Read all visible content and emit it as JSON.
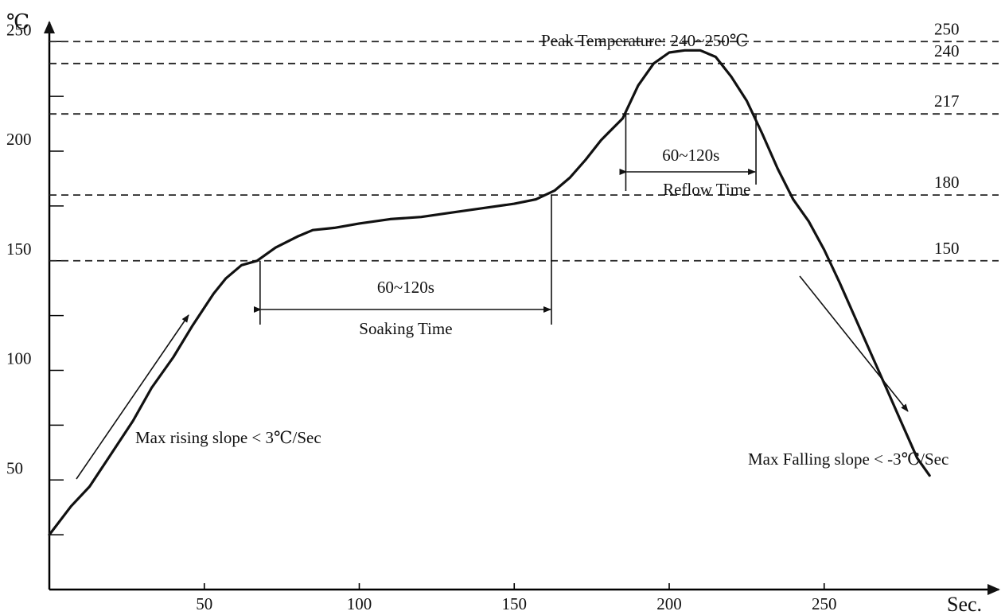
{
  "chart_data": {
    "type": "line",
    "title": "",
    "xlabel": "Sec.",
    "ylabel": "℃",
    "xlim": [
      0,
      290
    ],
    "ylim": [
      0,
      260
    ],
    "x_ticks": [
      50,
      100,
      150,
      200,
      250
    ],
    "y_tick_values": [
      25,
      50,
      75,
      100,
      125,
      150,
      175,
      200,
      225,
      250
    ],
    "y_tick_labels": [
      {
        "value": 50,
        "label": "50"
      },
      {
        "value": 100,
        "label": "100"
      },
      {
        "value": 150,
        "label": "150"
      },
      {
        "value": 200,
        "label": "200"
      },
      {
        "value": 250,
        "label": "250"
      }
    ],
    "grid": false,
    "reference_lines": [
      {
        "value": 250,
        "label": "250"
      },
      {
        "value": 240,
        "label": "240"
      },
      {
        "value": 217,
        "label": "217"
      },
      {
        "value": 180,
        "label": "180"
      },
      {
        "value": 150,
        "label": "150"
      }
    ],
    "series": [
      {
        "name": "",
        "x": [
          0,
          7,
          13,
          20,
          27,
          33,
          40,
          46,
          53,
          57,
          62,
          67,
          73,
          80,
          85,
          92,
          100,
          110,
          120,
          130,
          140,
          150,
          157,
          163,
          168,
          173,
          178,
          185,
          190,
          195,
          200,
          205,
          210,
          215,
          220,
          225,
          230,
          235,
          240,
          245,
          250,
          255,
          260,
          265,
          270,
          275,
          280,
          284
        ],
        "y": [
          25,
          38,
          47,
          62,
          77,
          92,
          106,
          120,
          135,
          142,
          148,
          150,
          156,
          161,
          164,
          165,
          167,
          169,
          170,
          172,
          174,
          176,
          178,
          182,
          188,
          196,
          205,
          215,
          230,
          240,
          245,
          246,
          246,
          243,
          234,
          223,
          208,
          192,
          178,
          168,
          155,
          140,
          124,
          108,
          92,
          76,
          60,
          52
        ]
      }
    ],
    "annotations": {
      "peak": "Peak Temperature: 240~250℃",
      "soaking_duration": "60~120s",
      "soaking_label": "Soaking Time",
      "soaking_range": [
        68,
        162
      ],
      "reflow_duration": "60~120s",
      "reflow_label": "Reflow Time",
      "reflow_range": [
        186,
        228
      ],
      "rising": "Max rising slope < 3℃/Sec",
      "falling": "Max Falling slope < -3℃/Sec"
    }
  }
}
